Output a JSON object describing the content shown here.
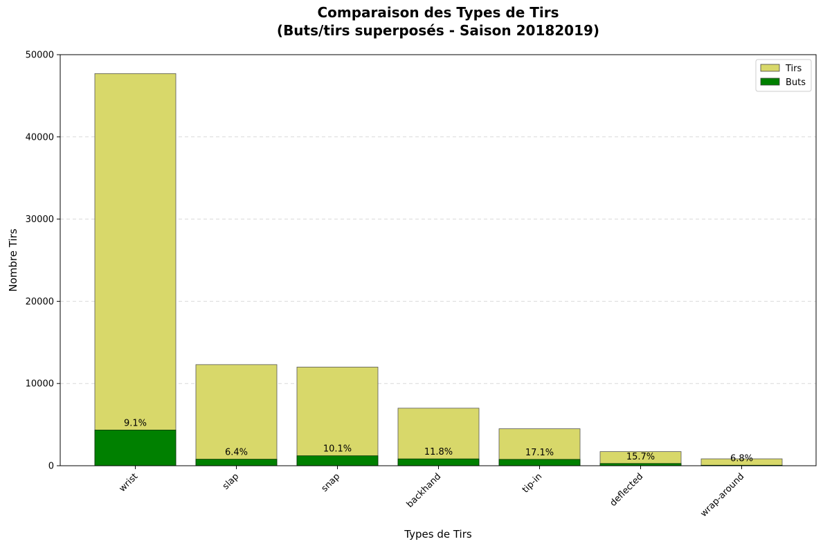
{
  "chart_data": {
    "type": "bar",
    "title_line1": "Comparaison des Types de Tirs",
    "title_line2": "(Buts/tirs superposés - Saison 20182019)",
    "xlabel": "Types de Tirs",
    "ylabel": "Nombre Tirs",
    "ylim": [
      0,
      50000
    ],
    "yticks": [
      "0",
      "10000",
      "20000",
      "30000",
      "40000",
      "50000"
    ],
    "grid": "y-dashed",
    "legend_placement": "top-right",
    "categories": [
      "wrist",
      "slap",
      "snap",
      "backhand",
      "tip-in",
      "deflected",
      "wrap-around"
    ],
    "series": [
      {
        "name": "Tirs",
        "color": "#d8d86a",
        "values": [
          47700,
          12300,
          12000,
          7000,
          4500,
          1720,
          840
        ]
      },
      {
        "name": "Buts",
        "color": "#008000",
        "values": [
          4340,
          790,
          1210,
          830,
          770,
          270,
          57
        ]
      }
    ],
    "percent_labels": [
      "9.1%",
      "6.4%",
      "10.1%",
      "11.8%",
      "17.1%",
      "15.7%",
      "6.8%"
    ]
  }
}
